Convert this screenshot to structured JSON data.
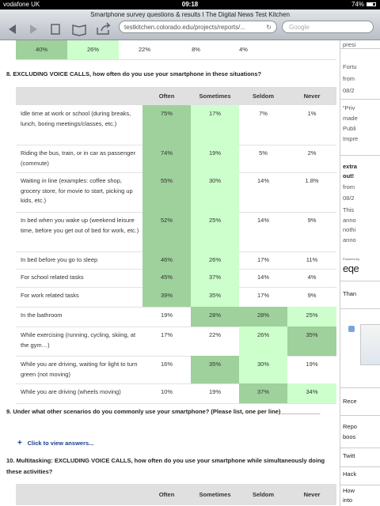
{
  "status": {
    "carrier": "vodafone UK",
    "time": "09:18",
    "battery": "74%"
  },
  "browser": {
    "title": "Smartphone survey questions & results I The Digital News Test Kitchen",
    "url": "testkitchen.colorado.edu/projects/reports/...",
    "search": "Google"
  },
  "prev_row": {
    "values": [
      "40%",
      "26%",
      "22%",
      "8%",
      "4%"
    ],
    "colors": [
      "#9fd19c",
      "#ccffcc",
      null,
      null,
      null
    ]
  },
  "q8": {
    "question": "8. EXCLUDING VOICE CALLS, how often do you use your smartphone in these situations?",
    "headers": [
      "Often",
      "Sometimes",
      "Seldom",
      "Never"
    ],
    "rows": [
      {
        "label": "Idle time at work or school (during breaks, lunch, boring meetings/classes, etc.)",
        "values": [
          "75%",
          "17%",
          "7%",
          "1%"
        ],
        "colors": [
          "#9fd19c",
          "#ccffcc",
          null,
          null
        ]
      },
      {
        "label": "Riding the bus, train, or in car as passenger (commute)",
        "values": [
          "74%",
          "19%",
          "5%",
          "2%"
        ],
        "colors": [
          "#9fd19c",
          "#ccffcc",
          null,
          null
        ]
      },
      {
        "label": "Waiting in line (examples: coffee shop, grocery store, for movie to start, picking up kids, etc.)",
        "values": [
          "55%",
          "30%",
          "14%",
          "1.8%"
        ],
        "colors": [
          "#9fd19c",
          "#ccffcc",
          null,
          null
        ]
      },
      {
        "label": "In bed when you wake up (weekend leisure time, before you get out of bed for work, etc.)",
        "values": [
          "52%",
          "25%",
          "14%",
          "9%"
        ],
        "colors": [
          "#9fd19c",
          "#ccffcc",
          null,
          null
        ]
      },
      {
        "label": "In bed before you go to sleep",
        "values": [
          "46%",
          "26%",
          "17%",
          "11%"
        ],
        "colors": [
          "#9fd19c",
          "#ccffcc",
          null,
          null
        ]
      },
      {
        "label": "For school related tasks",
        "values": [
          "45%",
          "37%",
          "14%",
          "4%"
        ],
        "colors": [
          "#9fd19c",
          "#ccffcc",
          null,
          null
        ]
      },
      {
        "label": "For work related tasks",
        "values": [
          "39%",
          "35%",
          "17%",
          "9%"
        ],
        "colors": [
          "#9fd19c",
          "#ccffcc",
          null,
          null
        ]
      },
      {
        "label": "In the bathroom",
        "values": [
          "19%",
          "28%",
          "28%",
          "25%"
        ],
        "colors": [
          null,
          "#9fd19c",
          "#9fd19c",
          "#ccffcc"
        ]
      },
      {
        "label": "While exercising (running, cycling, skiing, at the gym…)",
        "values": [
          "17%",
          "22%",
          "26%",
          "35%"
        ],
        "colors": [
          null,
          null,
          "#ccffcc",
          "#9fd19c"
        ]
      },
      {
        "label": "While you are driving, waiting for light to turn green (not moving)",
        "values": [
          "16%",
          "35%",
          "30%",
          "19%"
        ],
        "colors": [
          null,
          "#9fd19c",
          "#ccffcc",
          null
        ]
      },
      {
        "label": "While you are driving (wheels moving)",
        "values": [
          "10%",
          "19%",
          "37%",
          "34%"
        ],
        "colors": [
          null,
          null,
          "#9fd19c",
          "#ccffcc"
        ]
      }
    ]
  },
  "q9": {
    "question": "9. Under what other scenarios do you commonly use your smartphone? (Please list, one per line)____________",
    "link": "Click to view answers..."
  },
  "q10": {
    "question": "10. Multitasking: EXCLUDING VOICE CALLS, how often do you use your smartphone while simultaneously doing these activities?",
    "headers": [
      "Often",
      "Sometimes",
      "Seldom",
      "Never"
    ]
  },
  "sidebar": [
    "presi",
    "Fortu",
    "from",
    "08/2",
    "“Priv",
    "made",
    "Publi",
    "Impre",
    "extra",
    "out!",
    "from",
    "08/2",
    "This",
    "anno",
    "nothi",
    "anno",
    "Powered by",
    "eqe",
    "Than",
    "Rece",
    "Repo",
    "boos",
    "Twitt",
    "Hack",
    "How",
    "into"
  ]
}
